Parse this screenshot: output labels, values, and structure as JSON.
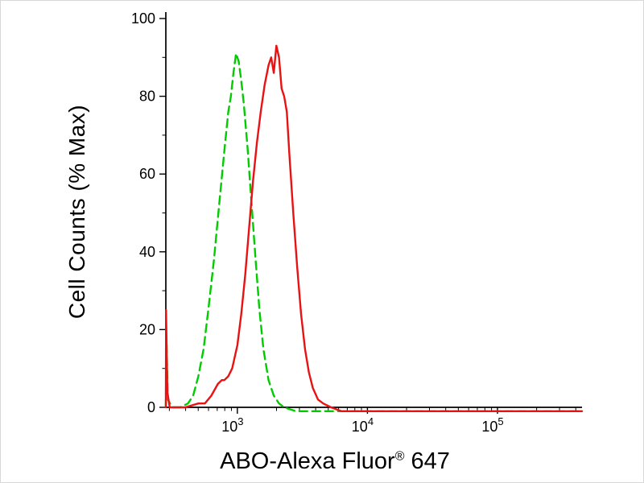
{
  "chart": {
    "ylabel": "Cell Counts (% Max)",
    "xlabel_main": "ABO-Alexa Fluor",
    "xlabel_sup": "®",
    "xlabel_suffix": " 647"
  },
  "chart_data": {
    "type": "line",
    "title": "",
    "xlabel": "ABO-Alexa Fluor® 647",
    "ylabel": "Cell Counts (% Max)",
    "x_scale": "log10",
    "x_range_log10": [
      2.45,
      5.65
    ],
    "ylim": [
      0,
      100
    ],
    "y_ticks": [
      0,
      20,
      40,
      60,
      80,
      100
    ],
    "y_minor_ticks": [
      10,
      30,
      50,
      70,
      90
    ],
    "x_major_ticks_log10": [
      3,
      4,
      5
    ],
    "x_tick_labels": [
      {
        "base": "10",
        "exp": "3"
      },
      {
        "base": "10",
        "exp": "4"
      },
      {
        "base": "10",
        "exp": "5"
      }
    ],
    "grid": false,
    "legend": "none",
    "series": [
      {
        "name": "control-green-dashed",
        "color": "#00cc00",
        "line_style": "dashed",
        "points_log10x_pct": [
          [
            2.45,
            0
          ],
          [
            2.455,
            18
          ],
          [
            2.465,
            2
          ],
          [
            2.5,
            0
          ],
          [
            2.56,
            0
          ],
          [
            2.62,
            1
          ],
          [
            2.66,
            3
          ],
          [
            2.7,
            8
          ],
          [
            2.74,
            15
          ],
          [
            2.78,
            26
          ],
          [
            2.82,
            38
          ],
          [
            2.86,
            52
          ],
          [
            2.9,
            66
          ],
          [
            2.93,
            76
          ],
          [
            2.95,
            80
          ],
          [
            2.97,
            86
          ],
          [
            2.99,
            91
          ],
          [
            3.01,
            89
          ],
          [
            3.03,
            84
          ],
          [
            3.05,
            78
          ],
          [
            3.08,
            66
          ],
          [
            3.11,
            52
          ],
          [
            3.14,
            38
          ],
          [
            3.17,
            25
          ],
          [
            3.2,
            15
          ],
          [
            3.24,
            7
          ],
          [
            3.28,
            3
          ],
          [
            3.32,
            1
          ],
          [
            3.36,
            0
          ],
          [
            3.45,
            -1
          ],
          [
            4.0,
            -1
          ],
          [
            5.0,
            -1
          ],
          [
            5.65,
            -1
          ]
        ]
      },
      {
        "name": "abo-antibody-red-solid",
        "color": "#e81212",
        "line_style": "solid",
        "points_log10x_pct": [
          [
            2.45,
            0
          ],
          [
            2.452,
            25
          ],
          [
            2.462,
            4
          ],
          [
            2.48,
            0
          ],
          [
            2.6,
            0
          ],
          [
            2.7,
            1
          ],
          [
            2.75,
            1
          ],
          [
            2.8,
            3
          ],
          [
            2.85,
            6
          ],
          [
            2.88,
            7
          ],
          [
            2.9,
            7
          ],
          [
            2.93,
            8
          ],
          [
            2.96,
            10
          ],
          [
            3.0,
            16
          ],
          [
            3.03,
            24
          ],
          [
            3.06,
            34
          ],
          [
            3.09,
            46
          ],
          [
            3.12,
            58
          ],
          [
            3.15,
            68
          ],
          [
            3.18,
            76
          ],
          [
            3.21,
            83
          ],
          [
            3.24,
            88
          ],
          [
            3.26,
            90
          ],
          [
            3.28,
            86
          ],
          [
            3.3,
            93
          ],
          [
            3.32,
            90
          ],
          [
            3.34,
            82
          ],
          [
            3.36,
            80
          ],
          [
            3.38,
            76
          ],
          [
            3.4,
            65
          ],
          [
            3.43,
            50
          ],
          [
            3.46,
            36
          ],
          [
            3.49,
            24
          ],
          [
            3.52,
            15
          ],
          [
            3.55,
            9
          ],
          [
            3.58,
            5
          ],
          [
            3.62,
            2
          ],
          [
            3.66,
            1
          ],
          [
            3.72,
            0
          ],
          [
            3.8,
            -1
          ],
          [
            4.5,
            -1
          ],
          [
            5.65,
            -1
          ]
        ]
      }
    ]
  }
}
